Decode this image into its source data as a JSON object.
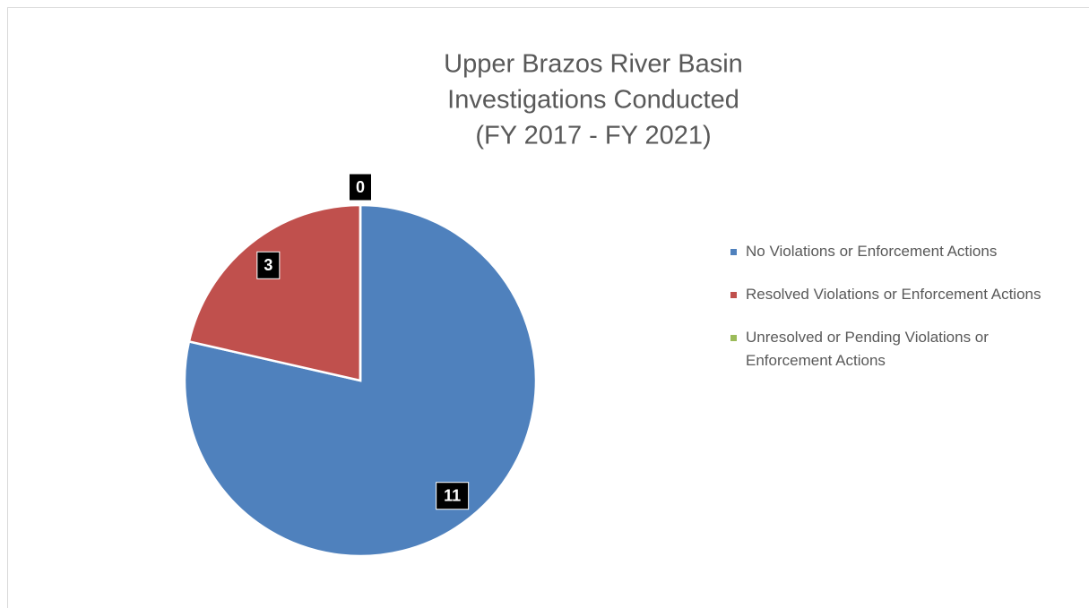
{
  "chart_data": {
    "type": "pie",
    "title": [
      "Upper Brazos River Basin",
      "Investigations Conducted",
      "(FY 2017 - FY 2021)"
    ],
    "categories": [
      "No Violations or Enforcement Actions",
      "Resolved Violations or Enforcement Actions",
      "Unresolved or Pending Violations or Enforcement Actions"
    ],
    "values": [
      11,
      3,
      0
    ],
    "colors": [
      "#4f81bd",
      "#c0504d",
      "#9bbb59"
    ],
    "legend": "right"
  }
}
